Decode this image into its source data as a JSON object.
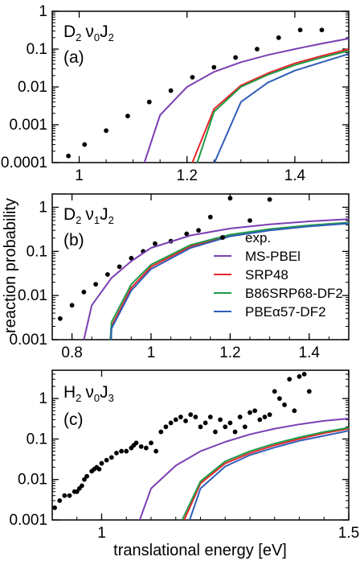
{
  "figure": {
    "ylabel": "reaction probability",
    "xlabel": "translational energy [eV]"
  },
  "legend": [
    {
      "name": "exp.",
      "marker": "dot",
      "color": "#000000"
    },
    {
      "name": "MS-PBEl",
      "color": "#7b3fb3"
    },
    {
      "name": "SRP48",
      "color": "#e8262a"
    },
    {
      "name": "B86SRP68-DF2",
      "color": "#1f9c49"
    },
    {
      "name": "PBEα57-DF2",
      "color": "#2f5db8"
    }
  ],
  "chart_data": [
    {
      "type": "line",
      "panel_label": "(a)",
      "molecule": "D",
      "molecule_sub": "2",
      "state": "ν",
      "state_sub": "0",
      "rot": "J",
      "rot_sub": "2",
      "xlim": [
        0.95,
        1.5
      ],
      "ylim": [
        0.0001,
        1
      ],
      "yscale": "log",
      "xticks": [
        1,
        1.2,
        1.4
      ],
      "xtick_labels": [
        "1",
        "1.2",
        "1.4"
      ],
      "yticks": [
        0.0001,
        0.001,
        0.01,
        0.1,
        1
      ],
      "ytick_labels": [
        "0.0001",
        "0.001",
        "0.01",
        "0.1",
        "1"
      ],
      "series": [
        {
          "name": "exp.",
          "style": "scatter",
          "color": "#000000",
          "x": [
            0.98,
            1.01,
            1.05,
            1.09,
            1.13,
            1.17,
            1.21,
            1.25,
            1.29,
            1.33,
            1.37,
            1.41,
            1.45
          ],
          "y": [
            0.00015,
            0.0003,
            0.0007,
            0.0017,
            0.004,
            0.008,
            0.018,
            0.033,
            0.06,
            0.1,
            0.2,
            0.32,
            0.32
          ]
        },
        {
          "name": "MS-PBEl",
          "color": "#7b3fb3",
          "x": [
            1.121,
            1.15,
            1.2,
            1.25,
            1.3,
            1.35,
            1.4,
            1.45,
            1.5
          ],
          "y": [
            0.0001,
            0.0018,
            0.01,
            0.025,
            0.045,
            0.07,
            0.1,
            0.14,
            0.19
          ]
        },
        {
          "name": "SRP48",
          "color": "#e8262a",
          "x": [
            1.21,
            1.25,
            1.3,
            1.35,
            1.4,
            1.45,
            1.5
          ],
          "y": [
            0.0001,
            0.0026,
            0.011,
            0.023,
            0.042,
            0.066,
            0.1
          ]
        },
        {
          "name": "B86SRP68-DF2",
          "color": "#1f9c49",
          "x": [
            1.219,
            1.25,
            1.3,
            1.35,
            1.4,
            1.45,
            1.5
          ],
          "y": [
            0.0001,
            0.0022,
            0.01,
            0.021,
            0.038,
            0.06,
            0.09
          ]
        },
        {
          "name": "PBEα57-DF2",
          "color": "#2f5db8",
          "x": [
            1.251,
            1.3,
            1.35,
            1.4,
            1.45,
            1.5
          ],
          "y": [
            0.0001,
            0.004,
            0.013,
            0.027,
            0.045,
            0.075
          ]
        }
      ]
    },
    {
      "type": "line",
      "panel_label": "(b)",
      "molecule": "D",
      "molecule_sub": "2",
      "state": "ν",
      "state_sub": "1",
      "rot": "J",
      "rot_sub": "2",
      "xlim": [
        0.75,
        1.5
      ],
      "ylim": [
        0.001,
        2
      ],
      "yscale": "log",
      "xticks": [
        0.8,
        1,
        1.2,
        1.4
      ],
      "xtick_labels": [
        "0.8",
        "1",
        "1.2",
        "1.4"
      ],
      "yticks": [
        0.001,
        0.01,
        0.1,
        1
      ],
      "ytick_labels": [
        "0.001",
        "0.01",
        "0.1",
        "1"
      ],
      "series": [
        {
          "name": "exp.",
          "style": "scatter",
          "color": "#000000",
          "x": [
            0.77,
            0.8,
            0.83,
            0.86,
            0.89,
            0.92,
            0.95,
            0.98,
            1.01,
            1.05,
            1.09,
            1.12,
            1.15,
            1.2,
            1.25,
            1.3
          ],
          "y": [
            0.003,
            0.006,
            0.012,
            0.018,
            0.03,
            0.045,
            0.07,
            0.1,
            0.15,
            0.17,
            0.25,
            0.3,
            0.6,
            1.6,
            0.5,
            1.5
          ]
        },
        {
          "name": "MS-PBEl",
          "color": "#7b3fb3",
          "x": [
            0.83,
            0.85,
            0.9,
            0.95,
            1.0,
            1.1,
            1.2,
            1.3,
            1.4,
            1.5
          ],
          "y": [
            0.001,
            0.006,
            0.025,
            0.06,
            0.12,
            0.23,
            0.33,
            0.41,
            0.48,
            0.54
          ]
        },
        {
          "name": "SRP48",
          "color": "#e8262a",
          "x": [
            0.898,
            0.9,
            0.95,
            1.0,
            1.1,
            1.2,
            1.3,
            1.4,
            1.5
          ],
          "y": [
            0.001,
            0.002,
            0.015,
            0.045,
            0.13,
            0.23,
            0.31,
            0.38,
            0.44
          ]
        },
        {
          "name": "B86SRP68-DF2",
          "color": "#1f9c49",
          "x": [
            0.897,
            0.9,
            0.95,
            1.0,
            1.1,
            1.2,
            1.3,
            1.4,
            1.5
          ],
          "y": [
            0.001,
            0.0025,
            0.018,
            0.05,
            0.14,
            0.24,
            0.32,
            0.39,
            0.45
          ]
        },
        {
          "name": "PBEα57-DF2",
          "color": "#2f5db8",
          "x": [
            0.899,
            0.9,
            0.95,
            1.0,
            1.1,
            1.2,
            1.3,
            1.4,
            1.5
          ],
          "y": [
            0.001,
            0.0018,
            0.013,
            0.04,
            0.12,
            0.22,
            0.3,
            0.37,
            0.43
          ]
        }
      ]
    },
    {
      "type": "line",
      "panel_label": "(c)",
      "molecule": "H",
      "molecule_sub": "2",
      "state": "ν",
      "state_sub": "0",
      "rot": "J",
      "rot_sub": "3",
      "xlim": [
        0.9,
        1.5
      ],
      "ylim": [
        0.001,
        5
      ],
      "yscale": "log",
      "xticks": [
        1,
        1.5
      ],
      "xtick_labels": [
        "1",
        "1.5"
      ],
      "yticks": [
        0.001,
        0.01,
        0.1,
        1
      ],
      "ytick_labels": [
        "0.001",
        "0.01",
        "0.1",
        "1"
      ],
      "series": [
        {
          "name": "exp.",
          "style": "scatter",
          "color": "#000000",
          "x": [
            0.905,
            0.915,
            0.925,
            0.935,
            0.945,
            0.95,
            0.955,
            0.96,
            0.965,
            0.97,
            0.98,
            0.985,
            0.99,
            0.995,
            1.0,
            1.01,
            1.02,
            1.03,
            1.04,
            1.05,
            1.06,
            1.065,
            1.07,
            1.08,
            1.09,
            1.1,
            1.11,
            1.12,
            1.13,
            1.14,
            1.15,
            1.16,
            1.17,
            1.18,
            1.19,
            1.2,
            1.21,
            1.22,
            1.23,
            1.24,
            1.25,
            1.26,
            1.27,
            1.28,
            1.29,
            1.3,
            1.31,
            1.32,
            1.33,
            1.34,
            1.35,
            1.36,
            1.37,
            1.38,
            1.39,
            1.4,
            1.41,
            1.42
          ],
          "y": [
            0.002,
            0.003,
            0.004,
            0.004,
            0.005,
            0.005,
            0.006,
            0.007,
            0.01,
            0.012,
            0.016,
            0.018,
            0.02,
            0.018,
            0.025,
            0.03,
            0.035,
            0.045,
            0.05,
            0.05,
            0.06,
            0.07,
            0.08,
            0.065,
            0.06,
            0.08,
            0.05,
            0.15,
            0.2,
            0.25,
            0.3,
            0.35,
            0.28,
            0.4,
            0.35,
            0.2,
            0.25,
            0.35,
            0.15,
            0.3,
            0.2,
            0.25,
            0.15,
            0.35,
            0.2,
            0.45,
            0.5,
            0.3,
            0.35,
            0.4,
            1.5,
            1.0,
            0.7,
            3.0,
            0.5,
            3.5,
            4.0,
            1.5
          ]
        },
        {
          "name": "MS-PBEl",
          "color": "#7b3fb3",
          "x": [
            1.077,
            1.1,
            1.15,
            1.2,
            1.25,
            1.3,
            1.35,
            1.4,
            1.45,
            1.5
          ],
          "y": [
            0.001,
            0.006,
            0.022,
            0.05,
            0.085,
            0.13,
            0.18,
            0.23,
            0.28,
            0.32
          ]
        },
        {
          "name": "SRP48",
          "color": "#e8262a",
          "x": [
            1.167,
            1.2,
            1.25,
            1.3,
            1.35,
            1.4,
            1.45,
            1.5
          ],
          "y": [
            0.001,
            0.008,
            0.025,
            0.045,
            0.07,
            0.1,
            0.14,
            0.18
          ]
        },
        {
          "name": "B86SRP68-DF2",
          "color": "#1f9c49",
          "x": [
            1.163,
            1.2,
            1.25,
            1.3,
            1.35,
            1.4,
            1.45,
            1.5
          ],
          "y": [
            0.001,
            0.009,
            0.028,
            0.05,
            0.077,
            0.11,
            0.15,
            0.19
          ]
        },
        {
          "name": "PBEα57-DF2",
          "color": "#2f5db8",
          "x": [
            1.178,
            1.2,
            1.25,
            1.3,
            1.35,
            1.4,
            1.45,
            1.5
          ],
          "y": [
            0.001,
            0.006,
            0.021,
            0.04,
            0.062,
            0.09,
            0.12,
            0.16
          ]
        }
      ]
    }
  ]
}
